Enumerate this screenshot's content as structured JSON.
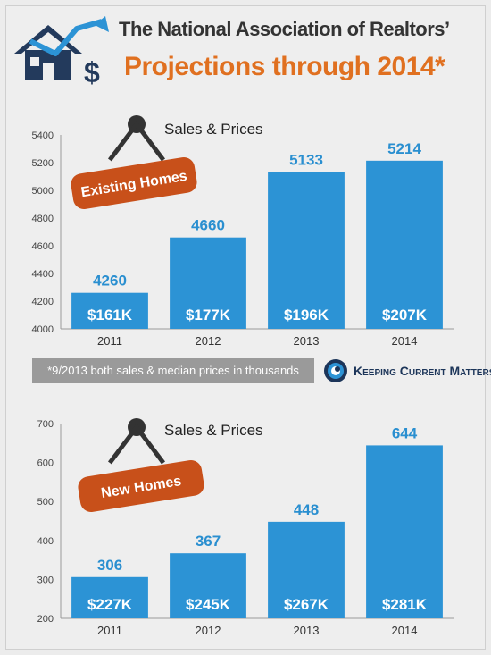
{
  "title": {
    "line1": "The National Association of Realtors’",
    "line2": "Projections through 2014*"
  },
  "footnote": "*9/2013 both sales & median prices in thousands",
  "brand": "Keeping Current Matters",
  "colors": {
    "bar": "#2c93d5",
    "value_label": "#2a8fd0",
    "tag": "#c8501a",
    "accent": "#e07020",
    "house": "#233a5c"
  },
  "icons": [
    "house-icon",
    "dollar-icon",
    "arrow-up-icon",
    "hanger-icon"
  ],
  "chart_data": [
    {
      "type": "bar",
      "title": "Sales & Prices",
      "tag": "Existing Homes",
      "categories": [
        "2011",
        "2012",
        "2013",
        "2014"
      ],
      "values": [
        4260,
        4660,
        5133,
        5214
      ],
      "bar_labels": [
        "$161K",
        "$177K",
        "$196K",
        "$207K"
      ],
      "ylim": [
        4000,
        5400
      ],
      "yticks": [
        "4000",
        "4200",
        "4400",
        "4600",
        "4800",
        "5000",
        "5200",
        "5400"
      ],
      "grid": false
    },
    {
      "type": "bar",
      "title": "Sales & Prices",
      "tag": "New Homes",
      "categories": [
        "2011",
        "2012",
        "2013",
        "2014"
      ],
      "values": [
        306,
        367,
        448,
        644
      ],
      "bar_labels": [
        "$227K",
        "$245K",
        "$267K",
        "$281K"
      ],
      "ylim": [
        200,
        700
      ],
      "yticks": [
        "200",
        "300",
        "400",
        "500",
        "600",
        "700"
      ],
      "grid": false
    }
  ]
}
